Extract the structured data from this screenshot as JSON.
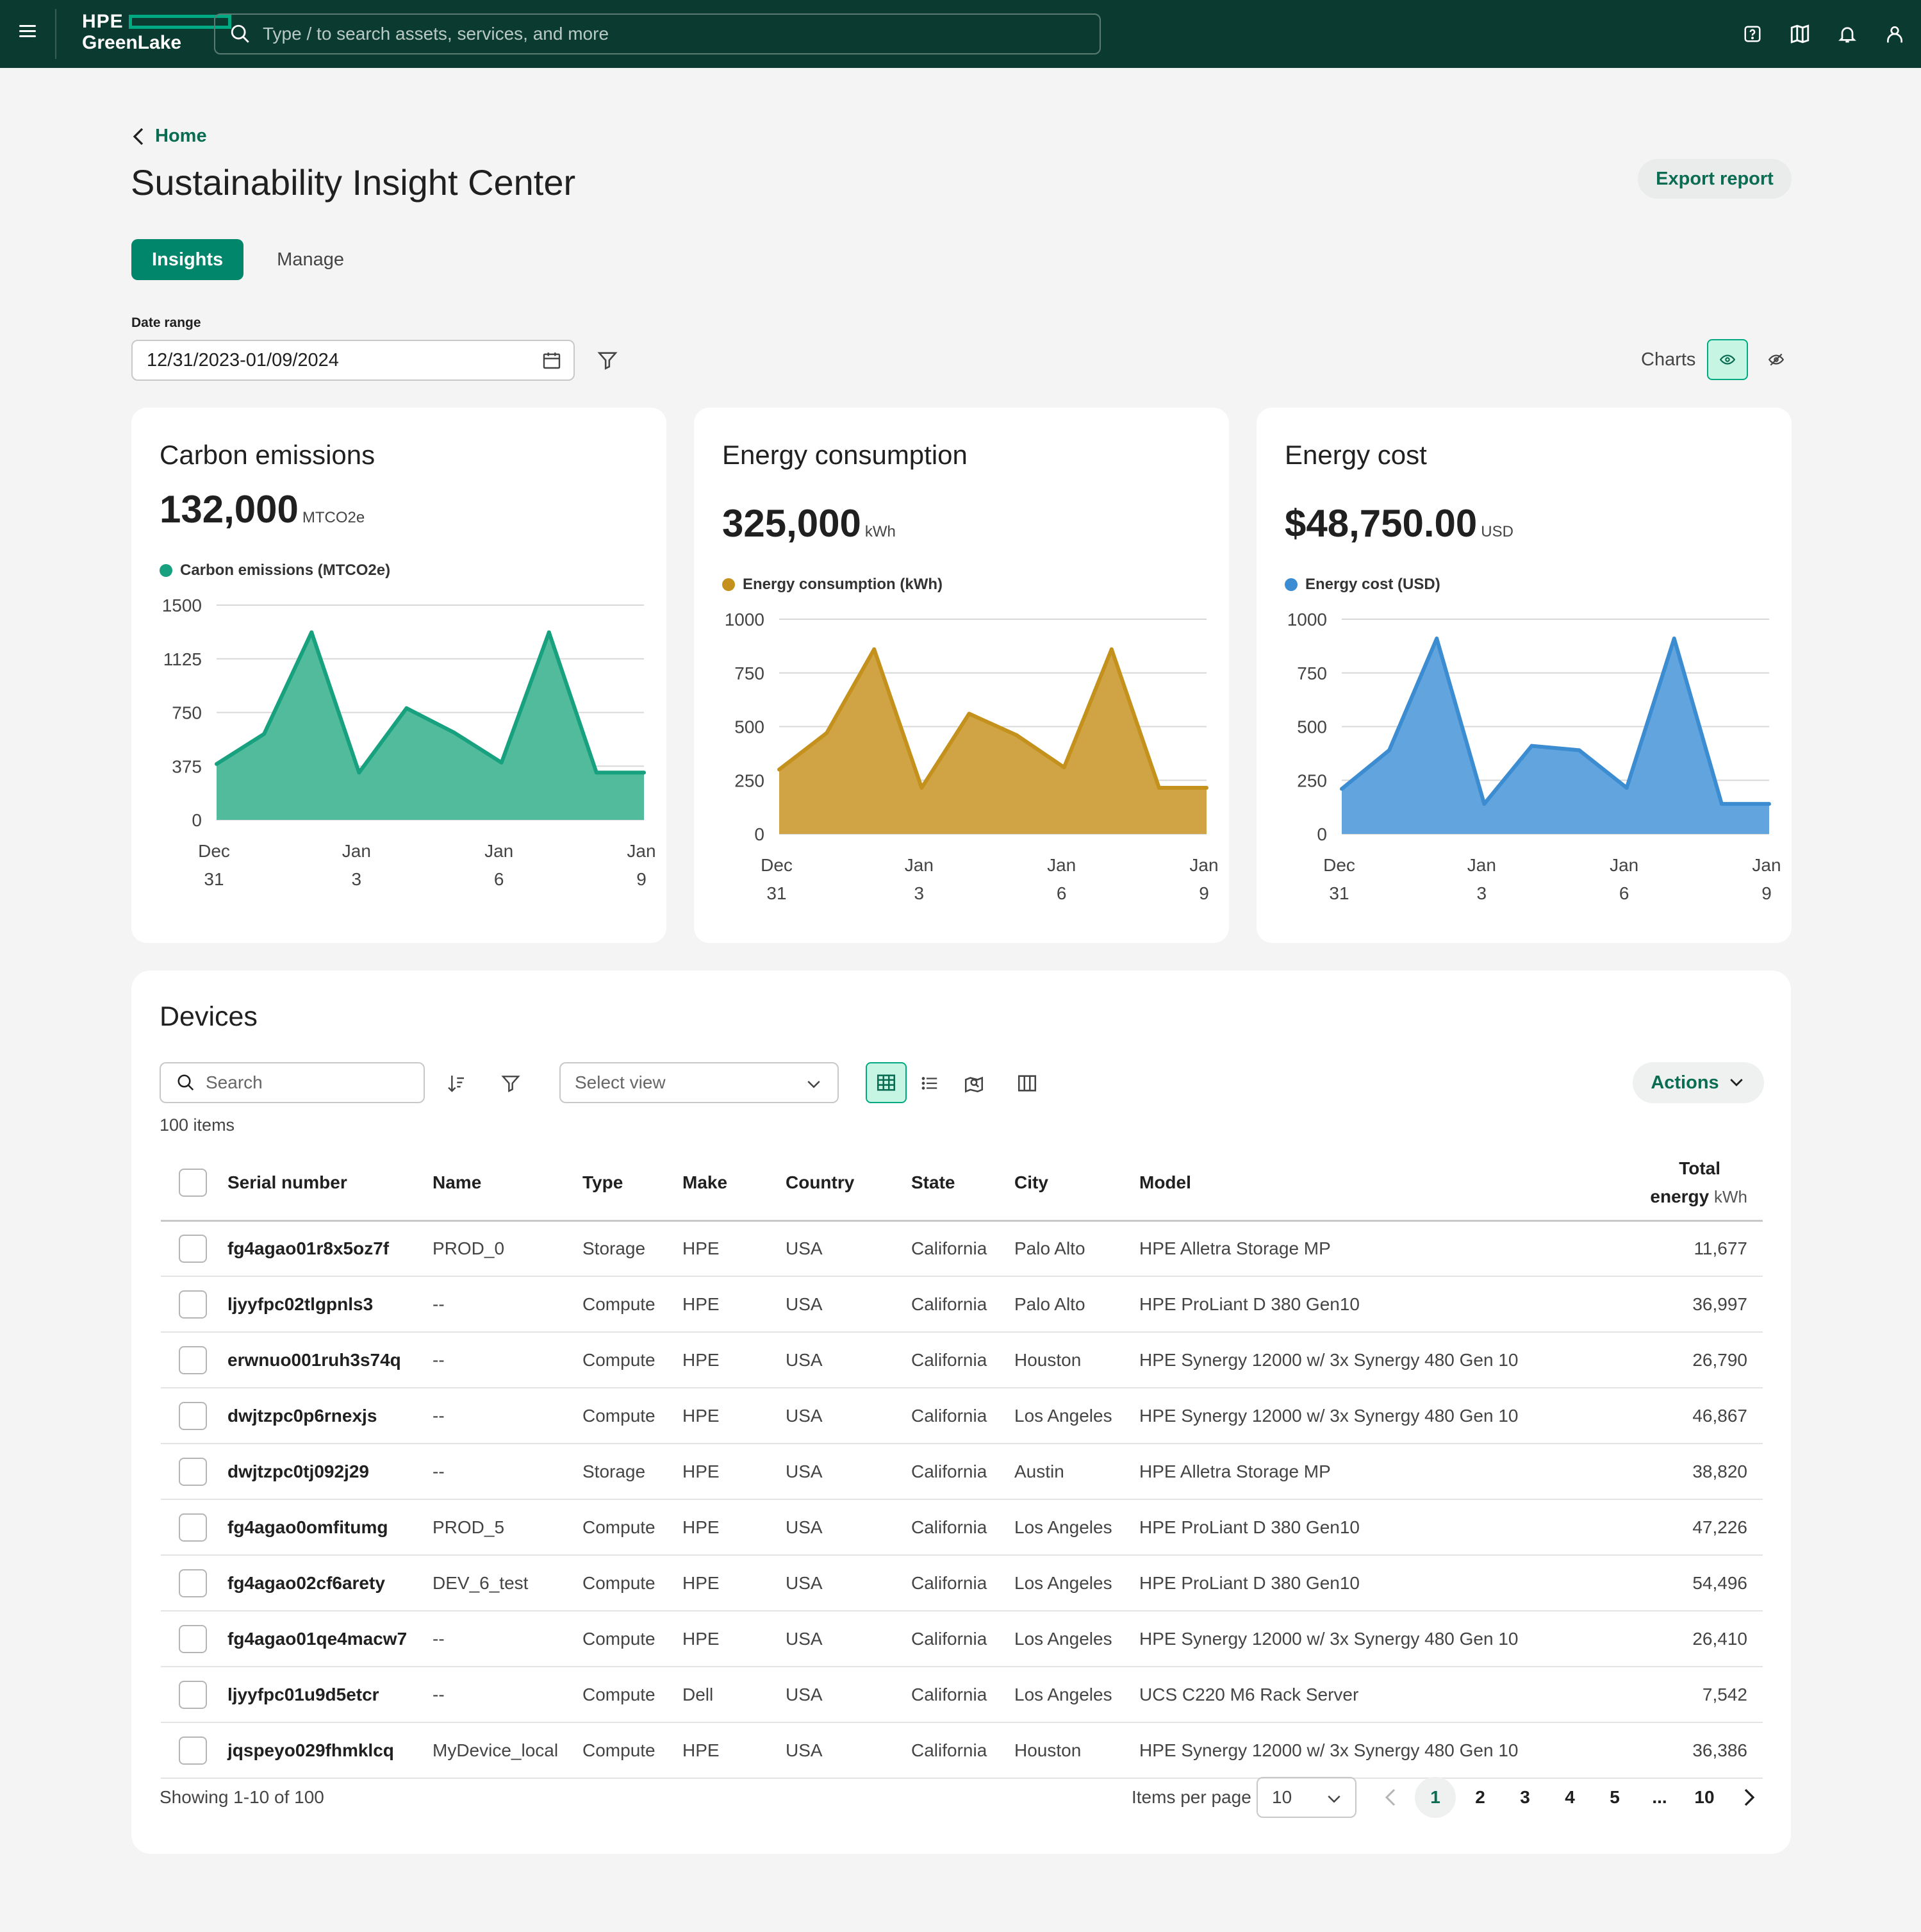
{
  "topbar": {
    "brand_top": "HPE",
    "brand_bottom": "GreenLake",
    "search_placeholder": "Type / to search assets, services, and more"
  },
  "header": {
    "breadcrumb": "Home",
    "title": "Sustainability Insight Center",
    "export_label": "Export report"
  },
  "tabs": [
    {
      "label": "Insights",
      "active": true
    },
    {
      "label": "Manage",
      "active": false
    }
  ],
  "filters": {
    "date_range_label": "Date range",
    "date_range_value": "12/31/2023-01/09/2024",
    "charts_label": "Charts"
  },
  "cards": [
    {
      "title": "Carbon emissions",
      "value": "132,000",
      "unit": "MTCO2e",
      "legend": "Carbon emissions (MTCO2e)",
      "color": "#17a17e",
      "fill": "#52bb9b"
    },
    {
      "title": "Energy consumption",
      "value": "325,000",
      "unit": "kWh",
      "legend": "Energy consumption (kWh)",
      "color": "#c4911d",
      "fill": "#d0a444"
    },
    {
      "title": "Energy cost",
      "value": "$48,750.00",
      "unit": "USD",
      "legend": "Energy cost (USD)",
      "color": "#3b8cd1",
      "fill": "#62a4dd"
    }
  ],
  "chart_data": [
    {
      "type": "area",
      "series": [
        {
          "name": "Carbon emissions (MTCO2e)",
          "values": [
            390,
            600,
            1310,
            330,
            780,
            610,
            400,
            1310,
            330,
            330
          ]
        }
      ],
      "x": [
        "Dec 31",
        "Jan 1",
        "Jan 2",
        "Jan 3",
        "Jan 4",
        "Jan 5",
        "Jan 6",
        "Jan 7",
        "Jan 8",
        "Jan 9"
      ],
      "x_tick_labels": [
        [
          "Dec",
          "31"
        ],
        [
          "Jan",
          "3"
        ],
        [
          "Jan",
          "6"
        ],
        [
          "Jan",
          "9"
        ]
      ],
      "y_ticks": [
        "0",
        "375",
        "750",
        "1125",
        "1500"
      ],
      "ylim": [
        0,
        1500
      ],
      "grid": true
    },
    {
      "type": "area",
      "series": [
        {
          "name": "Energy consumption (kWh)",
          "values": [
            300,
            470,
            860,
            215,
            560,
            460,
            310,
            860,
            215,
            215
          ]
        }
      ],
      "x": [
        "Dec 31",
        "Jan 1",
        "Jan 2",
        "Jan 3",
        "Jan 4",
        "Jan 5",
        "Jan 6",
        "Jan 7",
        "Jan 8",
        "Jan 9"
      ],
      "x_tick_labels": [
        [
          "Dec",
          "31"
        ],
        [
          "Jan",
          "3"
        ],
        [
          "Jan",
          "6"
        ],
        [
          "Jan",
          "9"
        ]
      ],
      "y_ticks": [
        "0",
        "250",
        "500",
        "750",
        "1000"
      ],
      "ylim": [
        0,
        1000
      ],
      "grid": true
    },
    {
      "type": "area",
      "series": [
        {
          "name": "Energy cost (USD)",
          "values": [
            210,
            390,
            910,
            140,
            410,
            390,
            215,
            910,
            140,
            140
          ]
        }
      ],
      "x": [
        "Dec 31",
        "Jan 1",
        "Jan 2",
        "Jan 3",
        "Jan 4",
        "Jan 5",
        "Jan 6",
        "Jan 7",
        "Jan 8",
        "Jan 9"
      ],
      "x_tick_labels": [
        [
          "Dec",
          "31"
        ],
        [
          "Jan",
          "3"
        ],
        [
          "Jan",
          "6"
        ],
        [
          "Jan",
          "9"
        ]
      ],
      "y_ticks": [
        "0",
        "250",
        "500",
        "750",
        "1000"
      ],
      "ylim": [
        0,
        1000
      ],
      "grid": true
    }
  ],
  "devices": {
    "title": "Devices",
    "search_placeholder": "Search",
    "select_view_placeholder": "Select view",
    "actions_label": "Actions",
    "count": "100 items",
    "columns": [
      "Serial number",
      "Name",
      "Type",
      "Make",
      "Country",
      "State",
      "City",
      "Model"
    ],
    "total_col_top": "Total",
    "total_col_bottom": "energy",
    "total_col_unit": "kWh",
    "rows": [
      [
        "fg4agao01r8x5oz7f",
        "PROD_0",
        "Storage",
        "HPE",
        "USA",
        "California",
        "Palo Alto",
        "HPE Alletra Storage MP",
        "11,677"
      ],
      [
        "ljyyfpc02tlgpnls3",
        "--",
        "Compute",
        "HPE",
        "USA",
        "California",
        "Palo Alto",
        "HPE ProLiant D 380 Gen10",
        "36,997"
      ],
      [
        "erwnuo001ruh3s74q",
        "--",
        "Compute",
        "HPE",
        "USA",
        "California",
        "Houston",
        "HPE Synergy 12000 w/ 3x Synergy 480 Gen 10",
        "26,790"
      ],
      [
        "dwjtzpc0p6rnexjs",
        "--",
        "Compute",
        "HPE",
        "USA",
        "California",
        "Los Angeles",
        "HPE Synergy 12000 w/ 3x Synergy 480 Gen 10",
        "46,867"
      ],
      [
        "dwjtzpc0tj092j29",
        "--",
        "Storage",
        "HPE",
        "USA",
        "California",
        "Austin",
        "HPE Alletra Storage MP",
        "38,820"
      ],
      [
        "fg4agao0omfitumg",
        "PROD_5",
        "Compute",
        "HPE",
        "USA",
        "California",
        "Los Angeles",
        "HPE ProLiant D 380 Gen10",
        "47,226"
      ],
      [
        "fg4agao02cf6arety",
        "DEV_6_test",
        "Compute",
        "HPE",
        "USA",
        "California",
        "Los Angeles",
        "HPE ProLiant D 380 Gen10",
        "54,496"
      ],
      [
        "fg4agao01qe4macw7",
        "--",
        "Compute",
        "HPE",
        "USA",
        "California",
        "Los Angeles",
        "HPE Synergy 12000 w/ 3x Synergy 480 Gen 10",
        "26,410"
      ],
      [
        "ljyyfpc01u9d5etcr",
        "--",
        "Compute",
        "Dell",
        "USA",
        "California",
        "Los Angeles",
        "UCS C220 M6 Rack Server",
        "7,542"
      ],
      [
        "jqspeyo029fhmklcq",
        "MyDevice_local",
        "Compute",
        "HPE",
        "USA",
        "California",
        "Houston",
        "HPE Synergy 12000 w/ 3x Synergy 480 Gen 10",
        "36,386"
      ]
    ],
    "showing": "Showing 1-10 of 100",
    "items_per_page_label": "Items per page",
    "items_per_page_value": "10",
    "pages": [
      "1",
      "2",
      "3",
      "4",
      "5",
      "...",
      "10"
    ],
    "current_page": "1"
  }
}
